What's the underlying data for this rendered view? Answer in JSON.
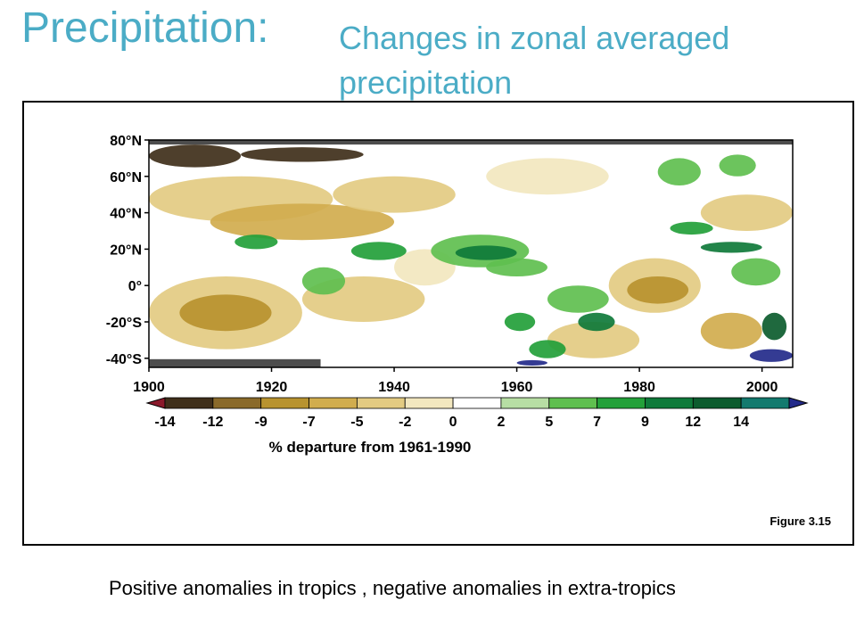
{
  "slide": {
    "title": "Precipitation:",
    "subtitle": "Changes in zonal averaged precipitation",
    "caption": "Positive anomalies in tropics , negative anomalies in extra-tropics",
    "figure_label": "Figure 3.15"
  },
  "colors": {
    "title": "#4bacc6",
    "no_data": "#4d4d4d"
  },
  "chart_data": {
    "type": "heatmap",
    "title": "",
    "xlabel": "",
    "ylabel": "",
    "xlim": [
      1900,
      2005
    ],
    "ylim": [
      -45,
      80
    ],
    "x_ticks": [
      1900,
      1920,
      1940,
      1960,
      1980,
      2000
    ],
    "x_tick_labels": [
      "1900",
      "1920",
      "1940",
      "1960",
      "1980",
      "2000"
    ],
    "y_ticks": [
      80,
      60,
      40,
      20,
      0,
      -20,
      -40
    ],
    "y_tick_labels": [
      "80°N",
      "60°N",
      "40°N",
      "20°N",
      "0°",
      "-20°S",
      "-40°S"
    ],
    "colorbar": {
      "label": "% departure from 1961-1990",
      "ticks": [
        -14,
        -12,
        -9,
        -7,
        -5,
        -2,
        0,
        2,
        5,
        7,
        9,
        12,
        14
      ],
      "tick_labels": [
        "-14",
        "-12",
        "-9",
        "-7",
        "-5",
        "-2",
        "0",
        "2",
        "5",
        "7",
        "9",
        "12",
        "14"
      ],
      "colors": [
        "#8b1a2b",
        "#3f2f1a",
        "#8a6a2a",
        "#b8932f",
        "#d1ad4e",
        "#e3cb82",
        "#f2e7bf",
        "#ffffff",
        "#b7dea4",
        "#5fbf4f",
        "#23a039",
        "#0f7a3a",
        "#0c5c2e",
        "#137a6e",
        "#232a8a"
      ],
      "extend": "both"
    },
    "no_data_regions": [
      {
        "x": [
          1900,
          2005
        ],
        "lat": [
          77.5,
          80
        ]
      },
      {
        "x": [
          1900,
          1928
        ],
        "lat": [
          -45,
          -40.5
        ]
      }
    ],
    "regions": [
      {
        "x": [
          1900,
          1915
        ],
        "lat": [
          65,
          77.5
        ],
        "value": -14
      },
      {
        "x": [
          1915,
          1935
        ],
        "lat": [
          68,
          76
        ],
        "value": -14
      },
      {
        "x": [
          1900,
          1930
        ],
        "lat": [
          35,
          60
        ],
        "value": -5
      },
      {
        "x": [
          1910,
          1940
        ],
        "lat": [
          25,
          45
        ],
        "value": -7
      },
      {
        "x": [
          1930,
          1950
        ],
        "lat": [
          40,
          60
        ],
        "value": -5
      },
      {
        "x": [
          1900,
          1925
        ],
        "lat": [
          -35,
          5
        ],
        "value": -5
      },
      {
        "x": [
          1905,
          1920
        ],
        "lat": [
          -25,
          -5
        ],
        "value": -9
      },
      {
        "x": [
          1925,
          1945
        ],
        "lat": [
          -20,
          5
        ],
        "value": -5
      },
      {
        "x": [
          1940,
          1950
        ],
        "lat": [
          0,
          20
        ],
        "value": -2
      },
      {
        "x": [
          1955,
          1975
        ],
        "lat": [
          50,
          70
        ],
        "value": -2
      },
      {
        "x": [
          1975,
          1990
        ],
        "lat": [
          -15,
          15
        ],
        "value": -5
      },
      {
        "x": [
          1978,
          1988
        ],
        "lat": [
          -10,
          5
        ],
        "value": -9
      },
      {
        "x": [
          1990,
          2005
        ],
        "lat": [
          30,
          50
        ],
        "value": -5
      },
      {
        "x": [
          1965,
          1980
        ],
        "lat": [
          -40,
          -20
        ],
        "value": -5
      },
      {
        "x": [
          1990,
          2000
        ],
        "lat": [
          -35,
          -15
        ],
        "value": -7
      },
      {
        "x": [
          1914,
          1921
        ],
        "lat": [
          20,
          28
        ],
        "value": 7
      },
      {
        "x": [
          1925,
          1932
        ],
        "lat": [
          -5,
          10
        ],
        "value": 5
      },
      {
        "x": [
          1933,
          1942
        ],
        "lat": [
          14,
          24
        ],
        "value": 7
      },
      {
        "x": [
          1946,
          1962
        ],
        "lat": [
          10,
          28
        ],
        "value": 5
      },
      {
        "x": [
          1950,
          1960
        ],
        "lat": [
          14,
          22
        ],
        "value": 9
      },
      {
        "x": [
          1955,
          1965
        ],
        "lat": [
          5,
          15
        ],
        "value": 5
      },
      {
        "x": [
          1958,
          1963
        ],
        "lat": [
          -25,
          -15
        ],
        "value": 7
      },
      {
        "x": [
          1962,
          1968
        ],
        "lat": [
          -40,
          -30
        ],
        "value": 7
      },
      {
        "x": [
          1970,
          1976
        ],
        "lat": [
          -25,
          -15
        ],
        "value": 9
      },
      {
        "x": [
          1965,
          1975
        ],
        "lat": [
          -15,
          0
        ],
        "value": 5
      },
      {
        "x": [
          1983,
          1990
        ],
        "lat": [
          55,
          70
        ],
        "value": 5
      },
      {
        "x": [
          1985,
          1992
        ],
        "lat": [
          28,
          35
        ],
        "value": 7
      },
      {
        "x": [
          1990,
          2000
        ],
        "lat": [
          18,
          24
        ],
        "value": 9
      },
      {
        "x": [
          1993,
          1999
        ],
        "lat": [
          60,
          72
        ],
        "value": 5
      },
      {
        "x": [
          1995,
          2003
        ],
        "lat": [
          0,
          15
        ],
        "value": 5
      },
      {
        "x": [
          2000,
          2004
        ],
        "lat": [
          -30,
          -15
        ],
        "value": 12
      },
      {
        "x": [
          1998,
          2005
        ],
        "lat": [
          -42,
          -35
        ],
        "value": 14
      },
      {
        "x": [
          1960,
          1965
        ],
        "lat": [
          -44,
          -41
        ],
        "value": 14
      }
    ]
  }
}
